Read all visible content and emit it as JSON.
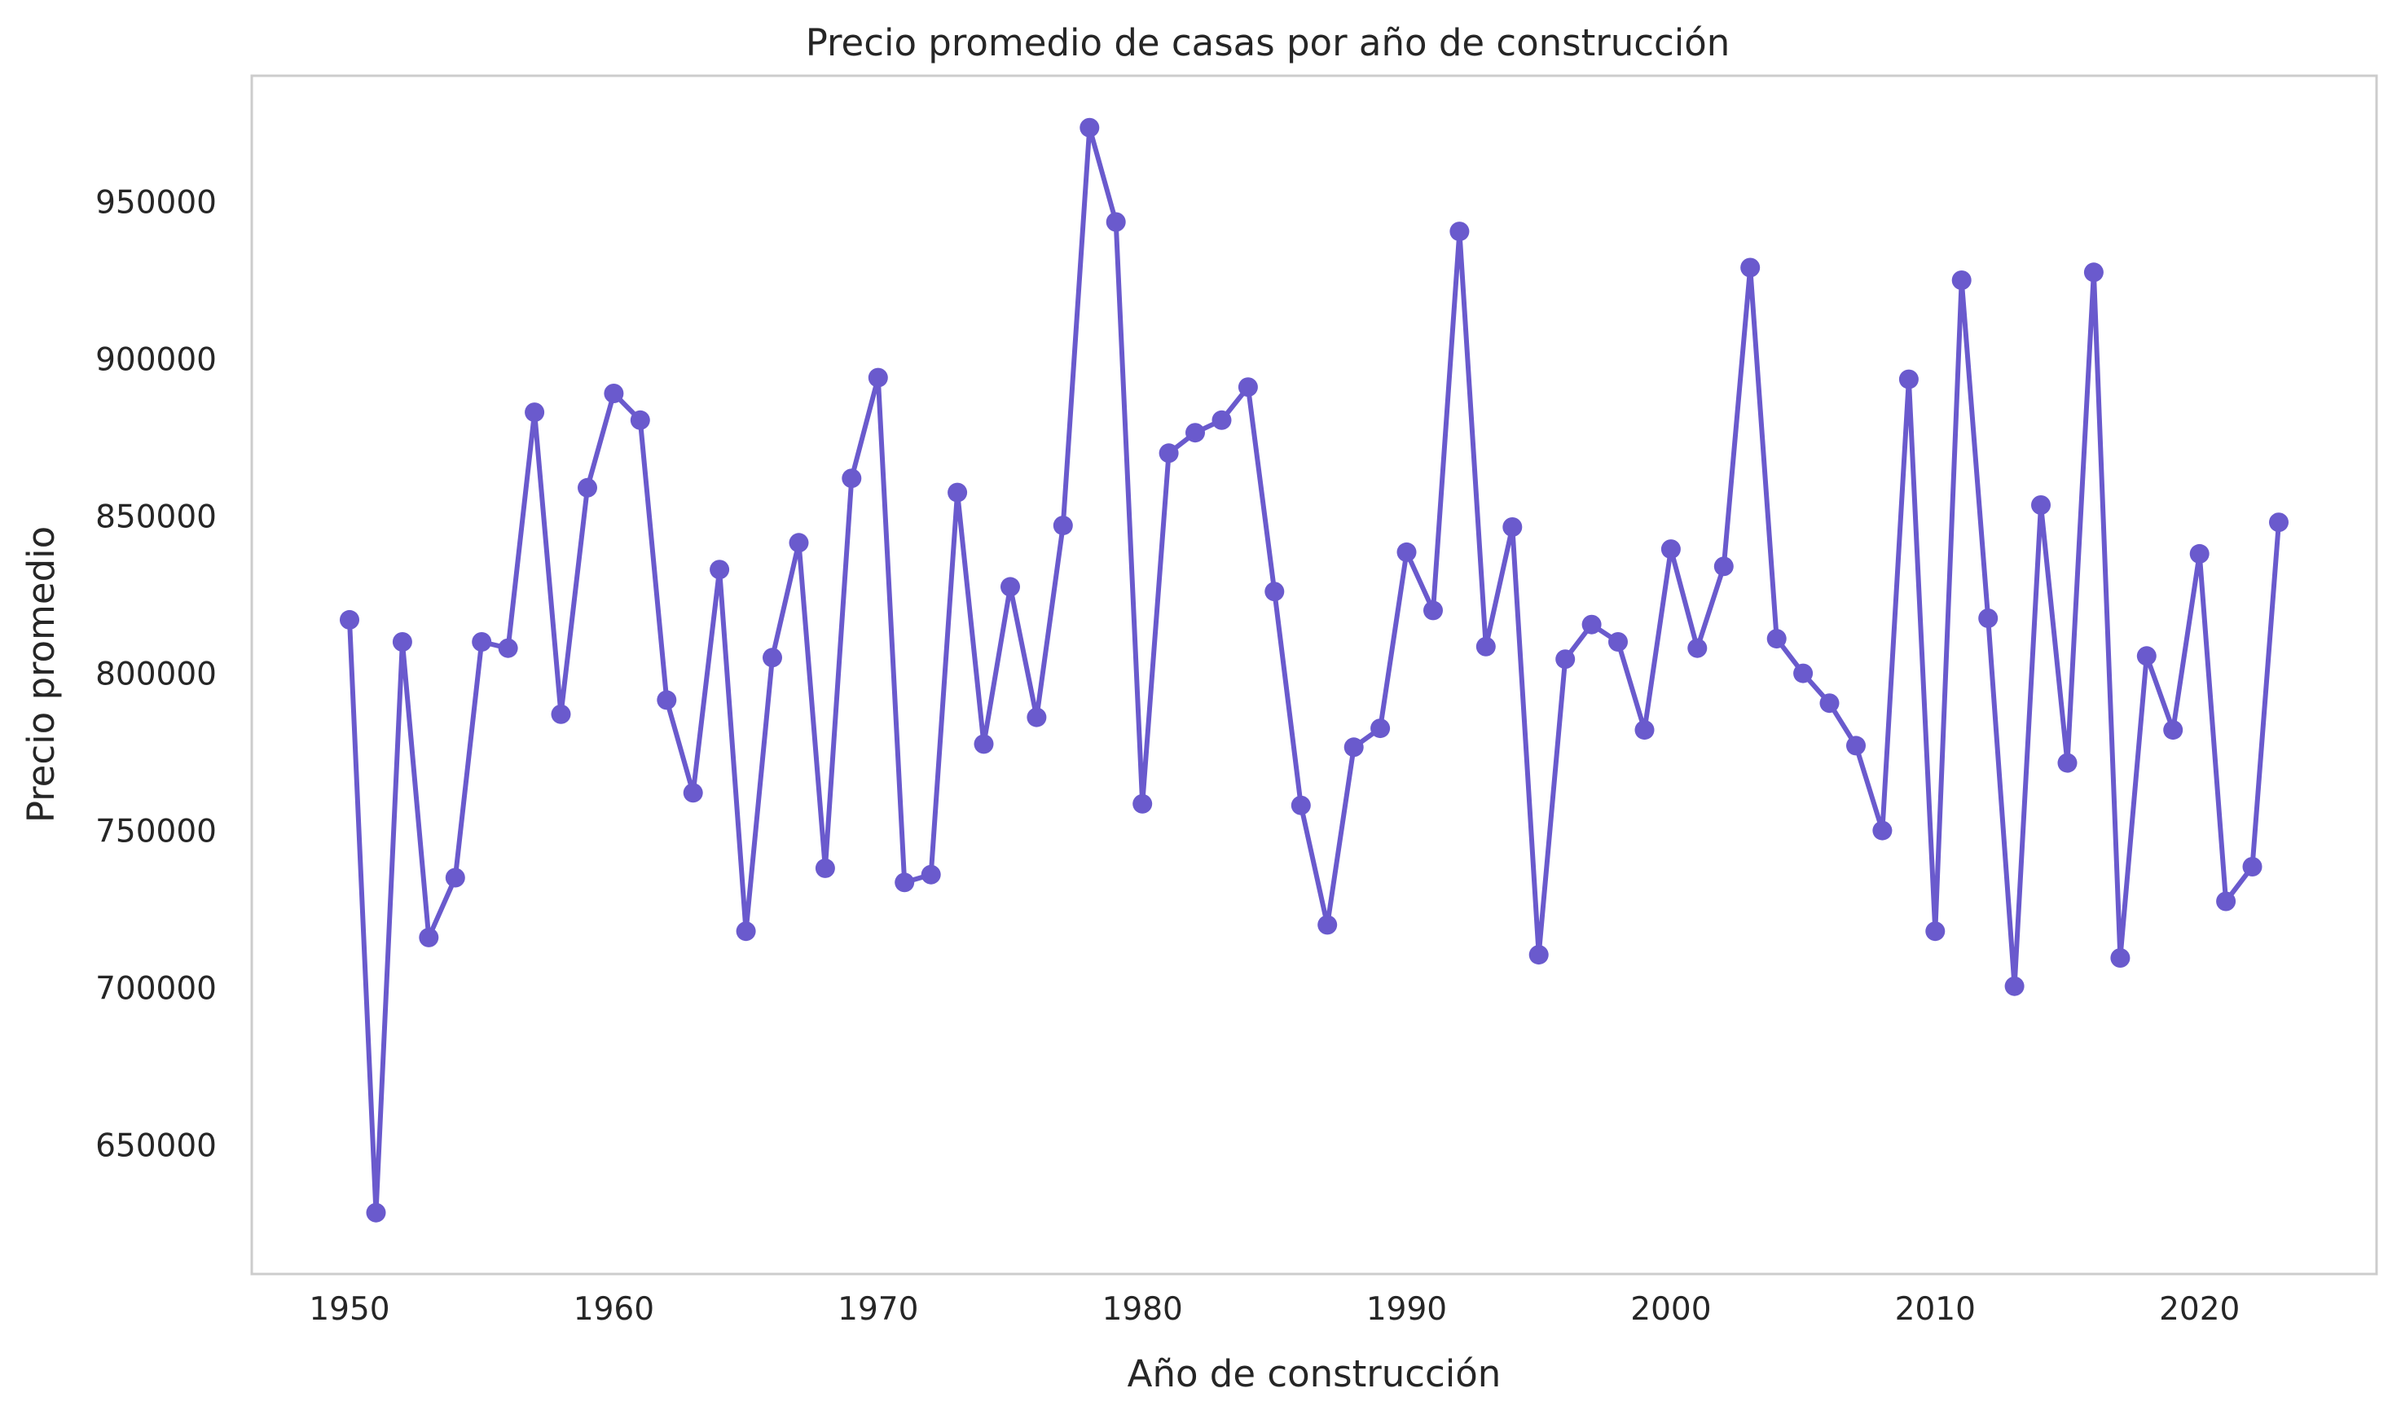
{
  "chart_data": {
    "type": "line",
    "title": "Precio promedio de casas por año de construcción",
    "xlabel": "Año de construcción",
    "ylabel": "Precio promedio",
    "xlim": [
      1946.3,
      2026.7
    ],
    "ylim": [
      609000,
      990000
    ],
    "x_ticks": [
      1950,
      1960,
      1970,
      1980,
      1990,
      2000,
      2010,
      2020
    ],
    "y_ticks": [
      650000,
      700000,
      750000,
      800000,
      850000,
      900000,
      950000
    ],
    "grid": false,
    "legend": "none",
    "colors": {
      "series": "#6A5ACD",
      "frame": "#CCCCCC",
      "text": "#262626"
    },
    "series": [
      {
        "x": [
          1950,
          1951,
          1952,
          1953,
          1954,
          1955,
          1956,
          1957,
          1958,
          1959,
          1960,
          1961,
          1962,
          1963,
          1964,
          1965,
          1966,
          1967,
          1968,
          1969,
          1970,
          1971,
          1972,
          1973,
          1974,
          1975,
          1976,
          1977,
          1978,
          1979,
          1980,
          1981,
          1982,
          1983,
          1984,
          1985,
          1986,
          1987,
          1988,
          1989,
          1990,
          1991,
          1992,
          1993,
          1994,
          1995,
          1996,
          1997,
          1998,
          1999,
          2000,
          2001,
          2002,
          2003,
          2004,
          2005,
          2006,
          2007,
          2008,
          2009,
          2010,
          2011,
          2012,
          2013,
          2014,
          2015,
          2016,
          2017,
          2018,
          2019,
          2020,
          2021,
          2022,
          2023
        ],
        "values": [
          817000,
          628500,
          810000,
          716000,
          735000,
          810000,
          808000,
          883000,
          787000,
          859000,
          889000,
          880500,
          791500,
          762000,
          833000,
          718000,
          805000,
          841500,
          738000,
          862000,
          894000,
          733500,
          736000,
          857500,
          777500,
          827500,
          786000,
          847000,
          973500,
          943500,
          758500,
          870000,
          876500,
          880500,
          891000,
          826000,
          758000,
          720000,
          776500,
          782500,
          838500,
          820000,
          940500,
          808500,
          846500,
          710500,
          804500,
          815500,
          810000,
          782000,
          839500,
          808000,
          834000,
          929000,
          811000,
          800000,
          790500,
          777000,
          750000,
          893500,
          718000,
          925000,
          817500,
          700500,
          853500,
          771500,
          927500,
          709500,
          805500,
          782000,
          838000,
          727500,
          738500,
          848000
        ]
      }
    ]
  }
}
